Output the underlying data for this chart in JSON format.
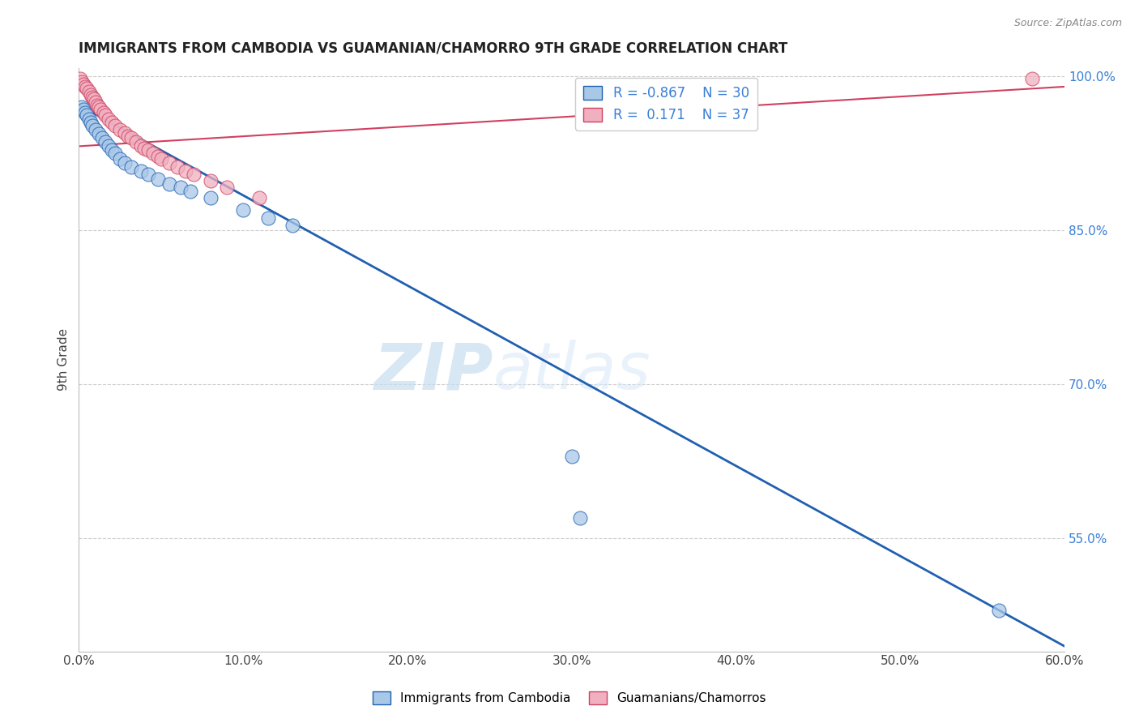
{
  "title": "IMMIGRANTS FROM CAMBODIA VS GUAMANIAN/CHAMORRO 9TH GRADE CORRELATION CHART",
  "source": "Source: ZipAtlas.com",
  "ylabel": "9th Grade",
  "watermark_zip": "ZIP",
  "watermark_atlas": "atlas",
  "legend_label_blue": "Immigrants from Cambodia",
  "legend_label_pink": "Guamanians/Chamorros",
  "R_blue": -0.867,
  "N_blue": 30,
  "R_pink": 0.171,
  "N_pink": 37,
  "xlim": [
    0.0,
    0.6
  ],
  "ylim": [
    0.44,
    1.008
  ],
  "xticks": [
    0.0,
    0.1,
    0.2,
    0.3,
    0.4,
    0.5,
    0.6
  ],
  "yticks_right": [
    1.0,
    0.85,
    0.7,
    0.55
  ],
  "ytick_labels_right": [
    "100.0%",
    "85.0%",
    "70.0%",
    "55.0%"
  ],
  "blue_dot_color": "#a8c8e8",
  "pink_dot_color": "#f0b0c0",
  "blue_line_color": "#2060b0",
  "pink_line_color": "#d04060",
  "background_color": "#ffffff",
  "grid_color": "#cccccc",
  "blue_x": [
    0.002,
    0.003,
    0.004,
    0.005,
    0.006,
    0.007,
    0.008,
    0.01,
    0.012,
    0.014,
    0.016,
    0.018,
    0.02,
    0.022,
    0.025,
    0.028,
    0.032,
    0.038,
    0.042,
    0.048,
    0.055,
    0.062,
    0.068,
    0.08,
    0.1,
    0.115,
    0.13,
    0.3,
    0.305,
    0.56
  ],
  "blue_y": [
    0.97,
    0.968,
    0.965,
    0.962,
    0.958,
    0.955,
    0.952,
    0.948,
    0.944,
    0.94,
    0.936,
    0.932,
    0.928,
    0.925,
    0.92,
    0.916,
    0.912,
    0.908,
    0.905,
    0.9,
    0.895,
    0.892,
    0.888,
    0.882,
    0.87,
    0.862,
    0.855,
    0.63,
    0.57,
    0.48
  ],
  "pink_x": [
    0.001,
    0.002,
    0.003,
    0.004,
    0.005,
    0.006,
    0.007,
    0.008,
    0.009,
    0.01,
    0.011,
    0.012,
    0.013,
    0.015,
    0.016,
    0.018,
    0.02,
    0.022,
    0.025,
    0.028,
    0.03,
    0.032,
    0.035,
    0.038,
    0.04,
    0.042,
    0.045,
    0.048,
    0.05,
    0.055,
    0.06,
    0.065,
    0.07,
    0.08,
    0.09,
    0.11,
    0.58
  ],
  "pink_y": [
    0.998,
    0.995,
    0.992,
    0.99,
    0.988,
    0.985,
    0.982,
    0.98,
    0.978,
    0.975,
    0.972,
    0.97,
    0.968,
    0.965,
    0.962,
    0.958,
    0.955,
    0.952,
    0.948,
    0.945,
    0.942,
    0.94,
    0.936,
    0.932,
    0.93,
    0.928,
    0.925,
    0.922,
    0.92,
    0.916,
    0.912,
    0.908,
    0.905,
    0.898,
    0.892,
    0.882,
    0.998
  ],
  "blue_line_x0": 0.0,
  "blue_line_y0": 0.972,
  "blue_line_x1": 0.6,
  "blue_line_y1": 0.445,
  "pink_line_x0": 0.0,
  "pink_line_y0": 0.932,
  "pink_line_x1": 0.6,
  "pink_line_y1": 0.99
}
